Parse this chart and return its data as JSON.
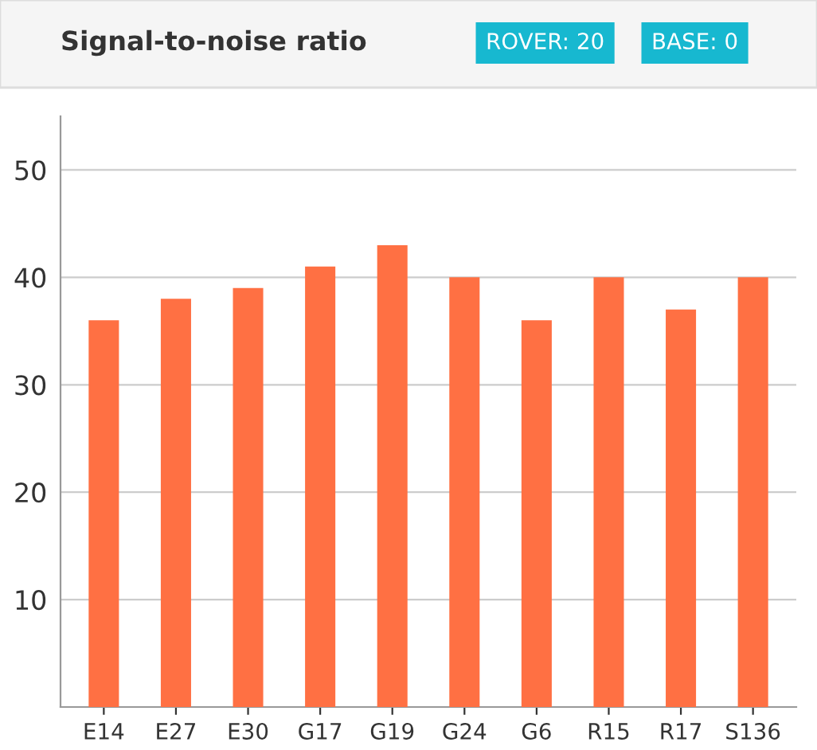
{
  "chart_data": {
    "type": "bar",
    "title": "Signal-to-noise ratio",
    "annotations": [
      "ROVER: 20",
      "BASE: 0"
    ],
    "categories": [
      "E14",
      "E27",
      "E30",
      "G17",
      "G19",
      "G24",
      "G6",
      "R15",
      "R17",
      "S136"
    ],
    "values": [
      36,
      38,
      39,
      41,
      43,
      40,
      36,
      40,
      37,
      40
    ],
    "color": "#ff7043",
    "ylim": [
      0,
      55
    ],
    "yticks": [
      10,
      20,
      30,
      40,
      50
    ],
    "grid": "y",
    "legend": false
  }
}
